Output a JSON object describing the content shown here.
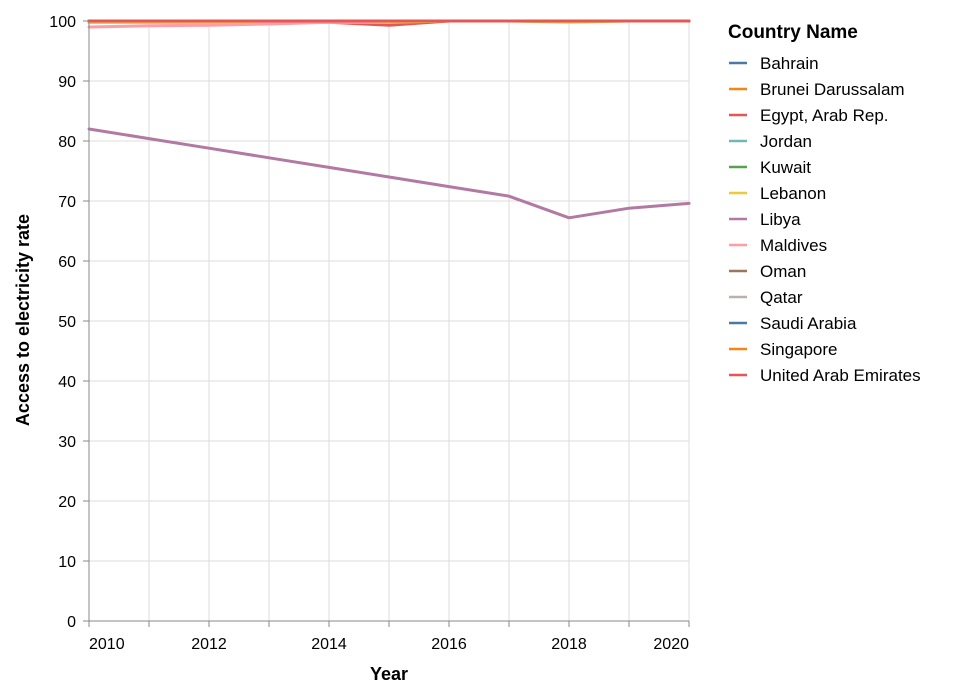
{
  "chart_data": {
    "type": "line",
    "xlabel": "Year",
    "ylabel": "Access to electricity rate",
    "xlim": [
      2010,
      2020
    ],
    "ylim": [
      0,
      100
    ],
    "x_ticks": [
      "2010",
      "2012",
      "2014",
      "2016",
      "2018",
      "2020"
    ],
    "y_ticks": [
      "0",
      "10",
      "20",
      "30",
      "40",
      "50",
      "60",
      "70",
      "80",
      "90",
      "100"
    ],
    "grid": true,
    "legend_title": "Country Name",
    "legend_position": "right",
    "x": [
      2010,
      2011,
      2012,
      2013,
      2014,
      2015,
      2016,
      2017,
      2018,
      2019,
      2020
    ],
    "series": [
      {
        "name": "Bahrain",
        "color": "#4c78a8",
        "values": [
          100,
          100,
          100,
          100,
          100,
          100,
          100,
          100,
          100,
          100,
          100
        ]
      },
      {
        "name": "Brunei Darussalam",
        "color": "#f58518",
        "values": [
          100,
          100,
          100,
          100,
          100,
          100,
          100,
          100,
          100,
          100,
          100
        ]
      },
      {
        "name": "Egypt, Arab Rep.",
        "color": "#e45756",
        "values": [
          99.8,
          99.8,
          99.8,
          99.8,
          99.8,
          99.3,
          100,
          100,
          100,
          100,
          100
        ]
      },
      {
        "name": "Jordan",
        "color": "#72b7b2",
        "values": [
          100,
          100,
          100,
          100,
          100,
          100,
          100,
          100,
          100,
          100,
          100
        ]
      },
      {
        "name": "Kuwait",
        "color": "#54a24b",
        "values": [
          100,
          100,
          100,
          100,
          100,
          100,
          100,
          100,
          100,
          100,
          100
        ]
      },
      {
        "name": "Lebanon",
        "color": "#eeca3b",
        "values": [
          99.8,
          99.8,
          99.8,
          99.8,
          99.8,
          99.8,
          100,
          100,
          99.8,
          100,
          100
        ]
      },
      {
        "name": "Libya",
        "color": "#b279a2",
        "values": [
          82.0,
          80.4,
          78.8,
          77.2,
          75.6,
          74.0,
          72.4,
          70.8,
          67.2,
          68.8,
          69.6
        ]
      },
      {
        "name": "Maldives",
        "color": "#ff9da6",
        "values": [
          99.0,
          99.2,
          99.3,
          99.5,
          99.8,
          100,
          100,
          100,
          100,
          100,
          100
        ]
      },
      {
        "name": "Oman",
        "color": "#9d755d",
        "values": [
          100,
          100,
          100,
          100,
          100,
          100,
          100,
          100,
          100,
          100,
          100
        ]
      },
      {
        "name": "Qatar",
        "color": "#bab0ac",
        "values": [
          100,
          100,
          100,
          100,
          100,
          100,
          100,
          100,
          100,
          100,
          100
        ]
      },
      {
        "name": "Saudi Arabia",
        "color": "#4c78a8",
        "values": [
          100,
          100,
          100,
          100,
          100,
          100,
          100,
          100,
          100,
          100,
          100
        ]
      },
      {
        "name": "Singapore",
        "color": "#f58518",
        "values": [
          100,
          100,
          100,
          100,
          100,
          100,
          100,
          100,
          100,
          100,
          100
        ]
      },
      {
        "name": "United Arab Emirates",
        "color": "#e45756",
        "values": [
          100,
          100,
          100,
          100,
          100,
          100,
          100,
          100,
          100,
          100,
          100
        ]
      }
    ]
  }
}
